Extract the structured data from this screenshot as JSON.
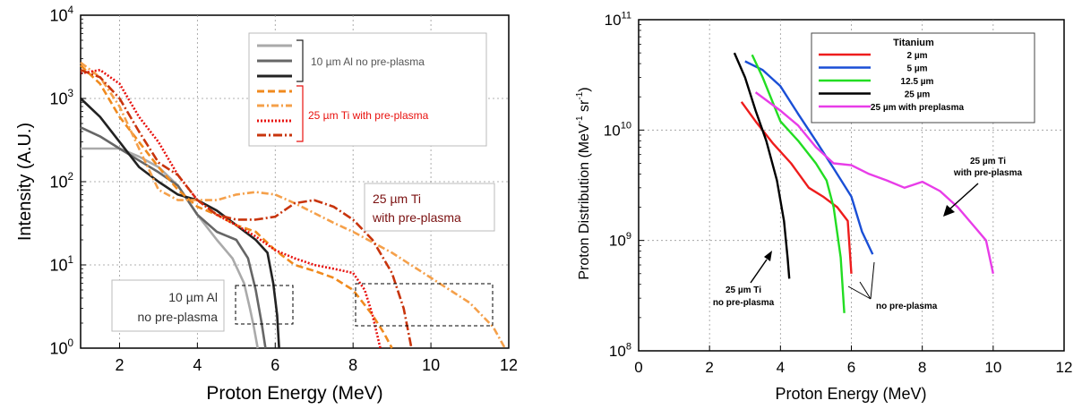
{
  "chart_data": [
    {
      "type": "line",
      "xlabel": "Proton Energy (MeV)",
      "ylabel": "Intensity (A.U.)",
      "xlim": [
        1,
        12
      ],
      "ylim": [
        1,
        10000
      ],
      "yscale": "log",
      "grid": true,
      "x_ticks": [
        "2",
        "4",
        "6",
        "8",
        "10",
        "12"
      ],
      "y_ticks": [
        "10",
        "10",
        "10",
        "10",
        "10"
      ],
      "y_tick_exponents": [
        "0",
        "1",
        "2",
        "3",
        "4"
      ],
      "legend": {
        "position": "top-right",
        "group1_label": "10 µm Al no pre-plasma",
        "group2_label": "25 µm Ti with pre-plasma"
      },
      "annotations": {
        "ti_box_line1": "25 µm Ti",
        "ti_box_line2": "with pre-plasma",
        "al_box_line1": "10 µm Al",
        "al_box_line2": "no pre-plasma"
      },
      "series": [
        {
          "group": "10 µm Al no pre-plasma",
          "color": "#aaaaaa",
          "style": "solid",
          "x": [
            1.0,
            1.4,
            2.0,
            2.5,
            3.0,
            3.5,
            4.0,
            4.5,
            4.9,
            5.2,
            5.35,
            5.45,
            5.55
          ],
          "y": [
            250,
            250,
            250,
            200,
            150,
            90,
            40,
            20,
            12,
            6,
            3,
            1.8,
            1.0
          ]
        },
        {
          "group": "10 µm Al no pre-plasma",
          "color": "#666666",
          "style": "solid",
          "x": [
            1.0,
            1.5,
            2.0,
            2.5,
            3.0,
            3.5,
            4.0,
            4.5,
            5.0,
            5.3,
            5.5,
            5.65,
            5.75
          ],
          "y": [
            450,
            350,
            250,
            180,
            130,
            90,
            40,
            25,
            20,
            12,
            5,
            2,
            1.0
          ]
        },
        {
          "group": "10 µm Al no pre-plasma",
          "color": "#222222",
          "style": "solid",
          "x": [
            1.0,
            1.5,
            2.0,
            2.5,
            3.0,
            3.5,
            4.0,
            4.5,
            5.0,
            5.5,
            5.8,
            5.95,
            6.05,
            6.1
          ],
          "y": [
            1000,
            600,
            300,
            150,
            100,
            70,
            60,
            45,
            30,
            20,
            14,
            6,
            2.5,
            1.0
          ]
        },
        {
          "group": "25 µm Ti with pre-plasma",
          "color": "#f08a1e",
          "style": "dashed",
          "x": [
            1.0,
            1.5,
            2.0,
            2.5,
            3.0,
            3.5,
            4.0,
            4.5,
            5.0,
            5.5,
            6.0,
            6.5,
            7.0,
            7.5,
            8.0,
            8.5,
            8.8,
            9.0
          ],
          "y": [
            2500,
            1500,
            600,
            300,
            150,
            80,
            50,
            40,
            30,
            25,
            15,
            10,
            8.5,
            7,
            5,
            2.5,
            1.5,
            1.0
          ]
        },
        {
          "group": "25 µm Ti with pre-plasma",
          "color": "#f5a04a",
          "style": "dash-dot",
          "x": [
            1.0,
            1.5,
            2.0,
            2.5,
            3.0,
            3.5,
            4.0,
            4.5,
            5.0,
            5.5,
            6.0,
            6.5,
            7.0,
            7.5,
            8.0,
            9.0,
            10.0,
            11.0,
            11.6,
            11.9
          ],
          "y": [
            2700,
            1800,
            800,
            250,
            80,
            60,
            60,
            60,
            70,
            75,
            70,
            55,
            42,
            32,
            25,
            14,
            7,
            3.5,
            1.8,
            1.0
          ]
        },
        {
          "group": "25 µm Ti with pre-plasma",
          "color": "#e8110e",
          "style": "dotted",
          "x": [
            1.0,
            1.5,
            2.0,
            2.5,
            3.0,
            3.5,
            4.0,
            4.5,
            5.0,
            5.5,
            6.0,
            6.5,
            7.0,
            7.5,
            8.0,
            8.3,
            8.5,
            8.7
          ],
          "y": [
            2000,
            2200,
            1500,
            600,
            300,
            120,
            60,
            40,
            30,
            22,
            15,
            12,
            10,
            9,
            8,
            5,
            2.5,
            1.0
          ]
        },
        {
          "group": "25 µm Ti with pre-plasma",
          "color": "#c8340c",
          "style": "long-dash-dot",
          "x": [
            1.0,
            1.5,
            2.0,
            2.5,
            3.0,
            3.5,
            4.0,
            4.5,
            5.0,
            5.5,
            6.0,
            6.5,
            7.0,
            7.5,
            8.0,
            8.5,
            9.0,
            9.3,
            9.5
          ],
          "y": [
            2200,
            1800,
            1000,
            400,
            170,
            120,
            60,
            40,
            35,
            35,
            38,
            55,
            60,
            50,
            35,
            20,
            8,
            3,
            1.0
          ]
        }
      ]
    },
    {
      "type": "line",
      "xlabel": "Proton Energy (MeV)",
      "ylabel": "Proton Distribution (MeV",
      "ylabel_sup1": "-1",
      "ylabel_mid": " sr",
      "ylabel_sup2": "-1",
      "ylabel_end": ")",
      "xlim": [
        0,
        12
      ],
      "ylim": [
        100000000,
        100000000000
      ],
      "yscale": "log",
      "grid": true,
      "x_ticks": [
        "0",
        "2",
        "4",
        "6",
        "8",
        "10",
        "12"
      ],
      "y_ticks": [
        "10",
        "10",
        "10",
        "10"
      ],
      "y_tick_exponents": [
        "8",
        "9",
        "10",
        "11"
      ],
      "legend": {
        "position": "top-right",
        "title": "Titanium"
      },
      "annotations": {
        "ti_pre_line1": "25 µm Ti",
        "ti_pre_line2": "with pre-plasma",
        "ti_no_line1": "25 µm Ti",
        "ti_no_line2": "no pre-plasma",
        "no_pre": "no pre-plasma"
      },
      "series": [
        {
          "name": "2 µm",
          "color": "#ee1c1c",
          "x": [
            2.9,
            3.3,
            3.8,
            4.3,
            4.8,
            5.2,
            5.6,
            5.9,
            6.0
          ],
          "y": [
            18000000000,
            12000000000,
            7500000000,
            5000000000,
            3000000000,
            2500000000,
            2000000000,
            1500000000,
            500000000
          ]
        },
        {
          "name": "5 µm",
          "color": "#1a4fd6",
          "x": [
            3.0,
            3.5,
            4.0,
            4.5,
            5.0,
            5.5,
            6.0,
            6.3,
            6.6
          ],
          "y": [
            42000000000,
            35000000000,
            25000000000,
            14000000000,
            8000000000,
            4500000000,
            2500000000,
            1200000000,
            750000000
          ]
        },
        {
          "name": "12.5 µm",
          "color": "#22dd22",
          "x": [
            3.2,
            3.5,
            4.0,
            4.5,
            5.0,
            5.3,
            5.5,
            5.7,
            5.8
          ],
          "y": [
            48000000000,
            30000000000,
            12000000000,
            8000000000,
            5000000000,
            3500000000,
            2000000000,
            700000000,
            220000000
          ]
        },
        {
          "name": "25 µm",
          "color": "#000000",
          "x": [
            2.7,
            3.0,
            3.3,
            3.6,
            3.9,
            4.1,
            4.2,
            4.25
          ],
          "y": [
            50000000000,
            30000000000,
            15000000000,
            8000000000,
            3500000000,
            1500000000,
            700000000,
            450000000
          ]
        },
        {
          "name": "25 µm with preplasma",
          "color": "#e83ce8",
          "x": [
            3.3,
            4.0,
            4.5,
            5.0,
            5.5,
            6.0,
            6.5,
            7.0,
            7.5,
            8.0,
            8.5,
            9.0,
            9.5,
            9.8,
            10.0
          ],
          "y": [
            22000000000,
            15000000000,
            11000000000,
            7000000000,
            5000000000,
            4800000000,
            4000000000,
            3500000000,
            3000000000,
            3400000000,
            2800000000,
            2000000000,
            1300000000,
            1000000000,
            500000000
          ]
        }
      ]
    }
  ]
}
